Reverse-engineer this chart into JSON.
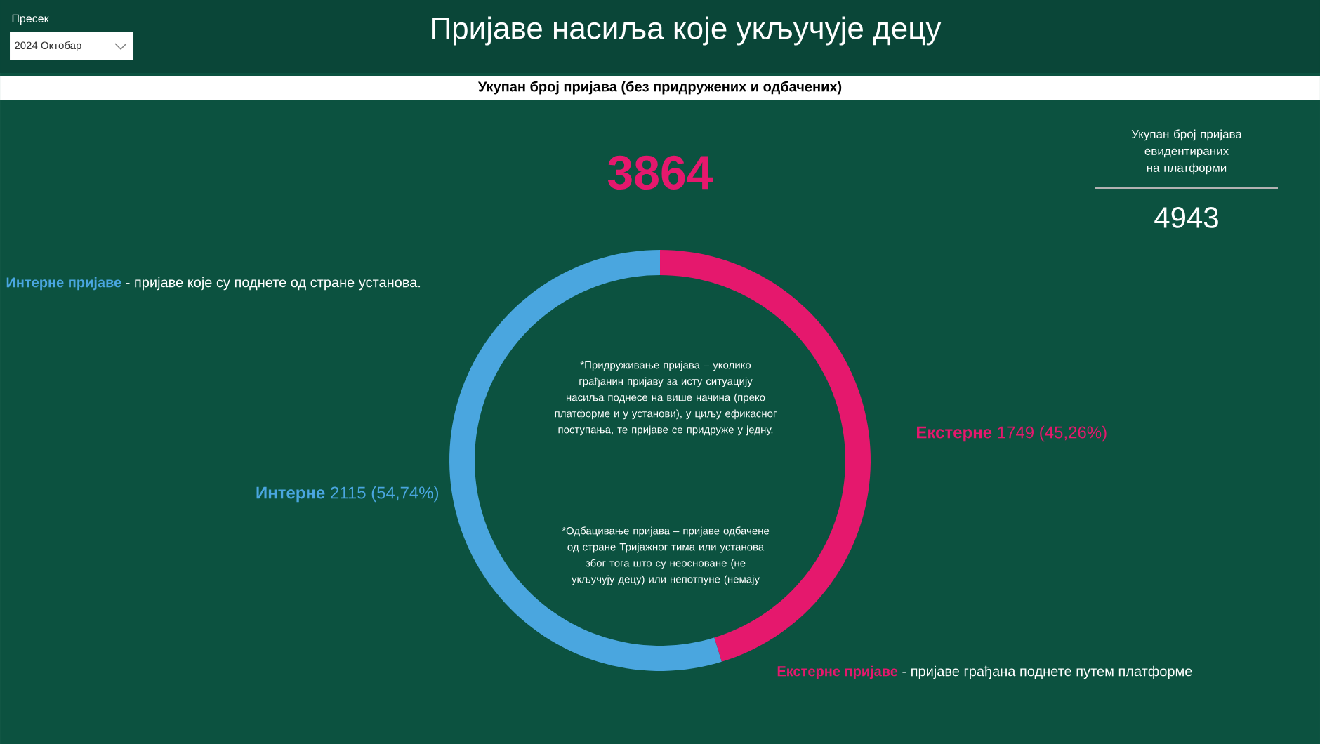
{
  "chart_data": {
    "type": "donut",
    "title": "Пријаве насиља које укључује децу",
    "subtitle": "Укупан број пријава (без придружених и одбачених)",
    "categories": [
      "Интерне",
      "Екстерне"
    ],
    "values": [
      2115,
      1749
    ],
    "colors": [
      "#4aa6df",
      "#e5186d"
    ],
    "value_labels": [
      "2115 (54,74%)",
      "1749 (45,26%)"
    ],
    "annotations": [
      "Пресек",
      "2024 Октобар",
      "3864",
      "Укупан број пријава евидентираних на платформи",
      "4943",
      "Интерне пријаве",
      "- пријаве које су поднете од стране установа.",
      "Екстерне пријаве",
      "- пријаве грађана поднете путем платформе",
      "*Придруживање пријава – уколико грађанин пријаву за исту ситуацију насиља поднесе на више начина (преко платформе и у установи), у циљу ефикасног поступања, те пријаве се придруже у једну.",
      "*Одбацивање пријава – пријаве одбачене од стране Тријажног тима или установа због тога што су неосноване (не укључују децу) или непотпуне (немају"
    ]
  }
}
